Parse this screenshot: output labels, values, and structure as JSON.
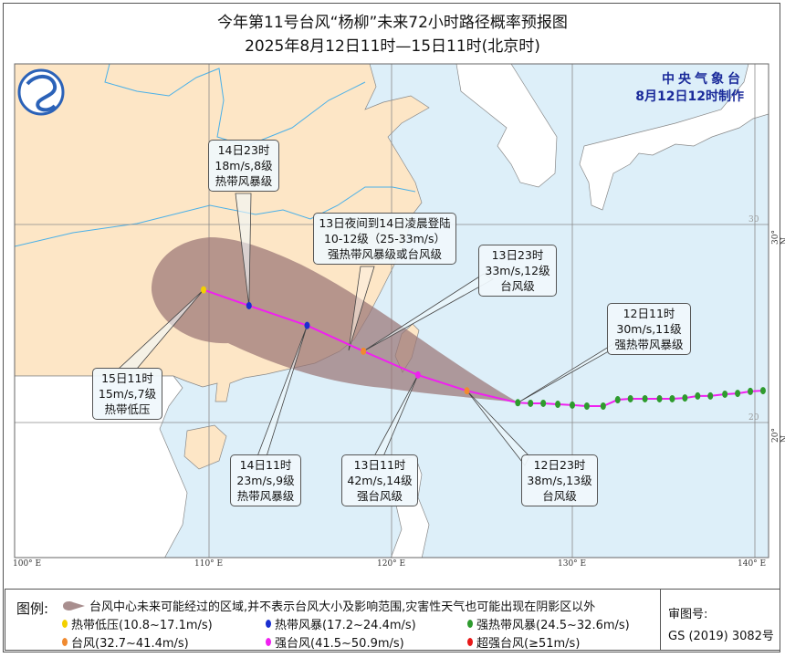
{
  "title": "今年第11号台风“杨柳”未来72小时路径概率预报图",
  "subtitle": "2025年8月12日11时—15日11时(北京时)",
  "agency": {
    "name": "中央气象台",
    "issued": "8月12日12时制作"
  },
  "axes": {
    "longitude_labels": [
      "100° E",
      "110° E",
      "120° E",
      "130° E",
      "140° E"
    ],
    "latitude_labels": [
      "30° N",
      "20° N"
    ],
    "grid_numbers": [
      "30",
      "20"
    ]
  },
  "colors": {
    "tropical_depression": "#f2d000",
    "tropical_storm": "#1a2fd0",
    "severe_tropical_storm": "#2e9b2e",
    "typhoon": "#f08a30",
    "severe_typhoon": "#f020f0",
    "super_typhoon": "#e81818",
    "track_line": "#f020f0",
    "cone": "#9a7676",
    "sea": "#ddeff9",
    "china_land": "#fde6c6",
    "other_land": "#ffffff"
  },
  "past_track": [
    {
      "lon": 140.5,
      "lat": 21.61
    },
    {
      "lon": 139.8,
      "lat": 21.57
    },
    {
      "lon": 139.1,
      "lat": 21.47
    },
    {
      "lon": 138.4,
      "lat": 21.43
    },
    {
      "lon": 137.6,
      "lat": 21.34
    },
    {
      "lon": 136.9,
      "lat": 21.34
    },
    {
      "lon": 136.2,
      "lat": 21.24
    },
    {
      "lon": 135.5,
      "lat": 21.2
    },
    {
      "lon": 134.8,
      "lat": 21.2
    },
    {
      "lon": 134.0,
      "lat": 21.2
    },
    {
      "lon": 133.2,
      "lat": 21.2
    },
    {
      "lon": 132.5,
      "lat": 21.15
    },
    {
      "lon": 131.7,
      "lat": 20.83
    },
    {
      "lon": 130.8,
      "lat": 20.83
    },
    {
      "lon": 130.0,
      "lat": 20.88
    },
    {
      "lon": 129.2,
      "lat": 20.92
    },
    {
      "lon": 128.4,
      "lat": 20.97
    },
    {
      "lon": 127.7,
      "lat": 20.97
    }
  ],
  "forecast_points": [
    {
      "time": "12日11时",
      "lon": 127.0,
      "lat": 21.0,
      "level": "severe_tropical_storm",
      "line1": "12日11时",
      "line2": "30m/s,11级",
      "line3": "强热带风暴级"
    },
    {
      "time": "12日23时",
      "lon": 124.2,
      "lat": 21.6,
      "level": "typhoon",
      "line1": "12日23时",
      "line2": "38m/s,13级",
      "line3": "台风级"
    },
    {
      "time": "13日11时",
      "lon": 121.5,
      "lat": 22.4,
      "level": "severe_typhoon",
      "line1": "13日11时",
      "line2": "42m/s,14级",
      "line3": "强台风级"
    },
    {
      "time": "13日23时",
      "lon": 118.5,
      "lat": 23.6,
      "level": "typhoon",
      "line1": "13日23时",
      "line2": "33m/s,12级",
      "line3": "台风级"
    },
    {
      "time": "14日11时",
      "lon": 115.4,
      "lat": 24.9,
      "level": "tropical_storm",
      "line1": "14日11时",
      "line2": "23m/s,9级",
      "line3": "热带风暴级"
    },
    {
      "time": "14日23时",
      "lon": 112.2,
      "lat": 25.9,
      "level": "tropical_storm",
      "line1": "14日23时",
      "line2": "18m/s,8级",
      "line3": "热带风暴级"
    },
    {
      "time": "15日11时",
      "lon": 109.7,
      "lat": 26.7,
      "level": "tropical_depression",
      "line1": "15日11时",
      "line2": "15m/s,7级",
      "line3": "热带低压"
    }
  ],
  "landfall_note": {
    "line1": "13日夜间到14日凌晨登陆",
    "line2": "10-12级（25-33m/s）",
    "line3": "强热带风暴级或台风级"
  },
  "legend": {
    "title": "图例:",
    "cone_text": "台风中心未来可能经过的区域,并不表示台风大小及影响范围,灾害性天气也可能出现在阴影区以外",
    "items": [
      {
        "key": "tropical_depression",
        "label": "热带低压(10.8~17.1m/s)"
      },
      {
        "key": "tropical_storm",
        "label": "热带风暴(17.2~24.4m/s)"
      },
      {
        "key": "severe_tropical_storm",
        "label": "强热带风暴(24.5~32.6m/s)"
      },
      {
        "key": "typhoon",
        "label": "台风(32.7~41.4m/s)"
      },
      {
        "key": "severe_typhoon",
        "label": "强台风(41.5~50.9m/s)"
      },
      {
        "key": "super_typhoon",
        "label": "超强台风(≥51m/s)"
      }
    ],
    "review_label": "审图号:",
    "review_number": "GS (2019) 3082号"
  }
}
